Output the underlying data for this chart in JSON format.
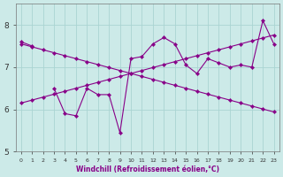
{
  "xlabel": "Windchill (Refroidissement éolien,°C)",
  "background_color": "#cceae8",
  "grid_color": "#aad4d2",
  "line_color": "#880088",
  "x_values": [
    0,
    1,
    2,
    3,
    4,
    5,
    6,
    7,
    8,
    9,
    10,
    11,
    12,
    13,
    14,
    15,
    16,
    17,
    18,
    19,
    20,
    21,
    22,
    23
  ],
  "y_main": [
    7.6,
    7.5,
    null,
    6.5,
    5.9,
    5.85,
    6.5,
    6.35,
    6.35,
    5.45,
    7.2,
    7.25,
    7.55,
    7.7,
    7.55,
    7.05,
    6.85,
    7.2,
    7.1,
    7.0,
    7.05,
    7.0,
    8.1,
    7.55
  ],
  "y_reg_down": [
    7.55,
    7.48,
    7.41,
    7.34,
    7.27,
    7.2,
    7.13,
    7.06,
    6.99,
    6.92,
    6.85,
    6.78,
    6.71,
    6.64,
    6.57,
    6.5,
    6.43,
    6.36,
    6.29,
    6.22,
    6.15,
    6.08,
    6.01,
    5.94
  ],
  "y_reg_up": [
    6.15,
    6.22,
    6.29,
    6.36,
    6.43,
    6.5,
    6.57,
    6.64,
    6.71,
    6.78,
    6.85,
    6.92,
    6.99,
    7.06,
    7.13,
    7.2,
    7.27,
    7.34,
    7.41,
    7.48,
    7.55,
    7.62,
    7.69,
    7.76
  ],
  "ylim": [
    5,
    8.5
  ],
  "xlim": [
    -0.5,
    23.5
  ],
  "yticks": [
    5,
    6,
    7,
    8
  ],
  "xticks": [
    0,
    1,
    2,
    3,
    4,
    5,
    6,
    7,
    8,
    9,
    10,
    11,
    12,
    13,
    14,
    15,
    16,
    17,
    18,
    19,
    20,
    21,
    22,
    23
  ],
  "xlabel_fontsize": 5.5,
  "tick_fontsize_x": 4.5,
  "tick_fontsize_y": 6.5,
  "linewidth": 0.8,
  "markersize": 2.2
}
